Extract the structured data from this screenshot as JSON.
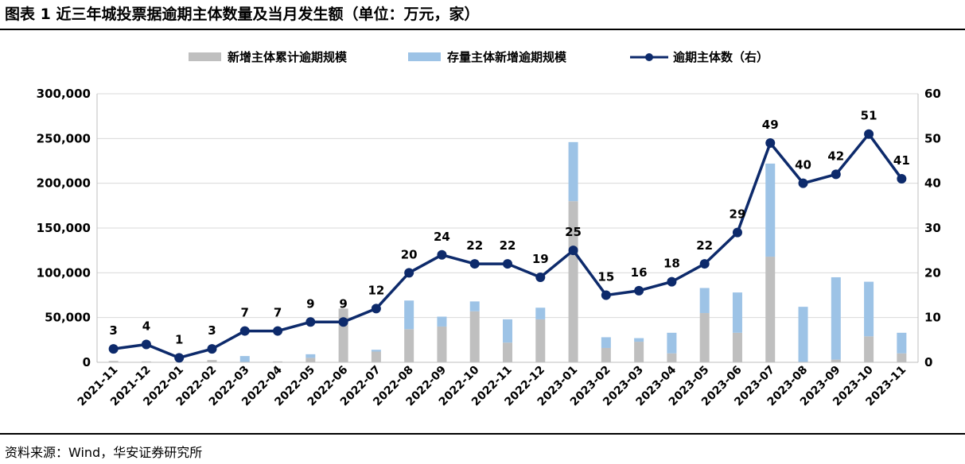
{
  "figure": {
    "title": "图表 1  近三年城投票据逾期主体数量及当月发生额（单位：万元，家）",
    "source": "资料来源：Wind，华安证券研究所"
  },
  "colors": {
    "grey_bar": "#BFBFBF",
    "blue_bar": "#9DC3E6",
    "line": "#0D2A6B"
  },
  "chart_data": {
    "type": "bar",
    "categories": [
      "2021-11",
      "2021-12",
      "2022-01",
      "2022-02",
      "2022-03",
      "2022-04",
      "2022-05",
      "2022-06",
      "2022-07",
      "2022-08",
      "2022-09",
      "2022-10",
      "2022-11",
      "2022-12",
      "2023-01",
      "2023-02",
      "2023-03",
      "2023-04",
      "2023-05",
      "2023-06",
      "2023-07",
      "2023-08",
      "2023-09",
      "2023-10",
      "2023-11"
    ],
    "series": [
      {
        "name": "新增主体累计逾期规模",
        "kind": "bar",
        "axis": "left",
        "values": [
          1500,
          1000,
          0,
          2500,
          0,
          1000,
          5000,
          60000,
          12000,
          37000,
          40000,
          57000,
          22000,
          48000,
          180000,
          16000,
          23000,
          10000,
          55000,
          33000,
          118000,
          0,
          3000,
          29000,
          10000
        ]
      },
      {
        "name": "存量主体新增逾期规模",
        "kind": "bar",
        "axis": "left",
        "values": [
          0,
          0,
          0,
          0,
          7000,
          0,
          4000,
          0,
          2000,
          32000,
          11000,
          11000,
          26000,
          13000,
          66000,
          12000,
          4000,
          23000,
          28000,
          45000,
          104000,
          62000,
          92000,
          61000,
          23000
        ]
      },
      {
        "name": "逾期主体数（右）",
        "kind": "line",
        "axis": "right",
        "values": [
          3,
          4,
          1,
          3,
          7,
          7,
          9,
          9,
          12,
          20,
          24,
          22,
          22,
          19,
          25,
          15,
          16,
          18,
          22,
          29,
          49,
          40,
          42,
          51,
          41
        ]
      }
    ],
    "left_axis": {
      "min": 0,
      "max": 300000,
      "ticks": [
        "0",
        "50,000",
        "100,000",
        "150,000",
        "200,000",
        "250,000",
        "300,000"
      ]
    },
    "right_axis": {
      "min": 0,
      "max": 60,
      "ticks": [
        "0",
        "10",
        "20",
        "30",
        "40",
        "50",
        "60"
      ]
    },
    "stacked": true,
    "grid": true,
    "legend": "top-center"
  }
}
